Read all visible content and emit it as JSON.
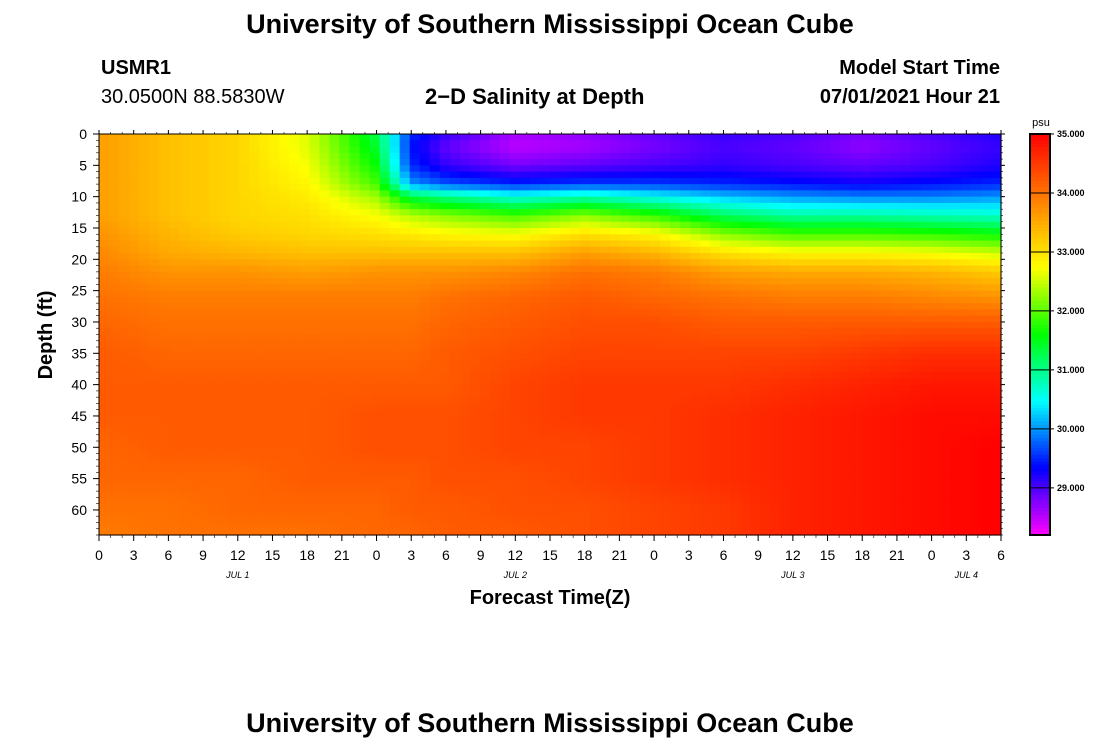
{
  "page": {
    "title_top": "University of Southern Mississippi Ocean Cube",
    "title_bottom": "University of Southern Mississippi Ocean Cube",
    "station_id": "USMR1",
    "station_coords": "30.0500N  88.5830W",
    "plot_title": "2−D Salinity at Depth",
    "model_start_label": "Model Start Time",
    "model_start_value": "07/01/2021 Hour 21"
  },
  "chart_data": {
    "type": "heatmap",
    "title": "2−D Salinity at Depth",
    "xlabel": "Forecast Time(Z)",
    "ylabel": "Depth (ft)",
    "colorbar_unit": "psu",
    "x_tick_labels": [
      "0",
      "3",
      "6",
      "9",
      "12",
      "15",
      "18",
      "21",
      "0",
      "3",
      "6",
      "9",
      "12",
      "15",
      "18",
      "21",
      "0",
      "3",
      "6",
      "9",
      "12",
      "15",
      "18",
      "21",
      "0",
      "3",
      "6"
    ],
    "x_range_hours": [
      0,
      78
    ],
    "date_labels": [
      {
        "label": "JUL 1",
        "hour": 12
      },
      {
        "label": "JUL 2",
        "hour": 36
      },
      {
        "label": "JUL 3",
        "hour": 60
      },
      {
        "label": "JUL 4",
        "hour": 75
      }
    ],
    "y_ticks": [
      0,
      5,
      10,
      15,
      20,
      25,
      30,
      35,
      40,
      45,
      50,
      55,
      60
    ],
    "y_range_ft": [
      0,
      64
    ],
    "y_reversed": true,
    "colorbar_ticks": [
      "35.000",
      "34.000",
      "33.000",
      "32.000",
      "31.000",
      "30.000",
      "29.000"
    ],
    "colorbar_range": [
      28.2,
      35.0
    ],
    "colorbar_colors": [
      "#ff00ff",
      "#8000ff",
      "#0000ff",
      "#0080ff",
      "#00ffff",
      "#00ff80",
      "#00ff00",
      "#80ff00",
      "#ffff00",
      "#ffc000",
      "#ff8000",
      "#ff4000",
      "#ff0000"
    ],
    "time_hours": [
      0,
      6,
      12,
      18,
      24,
      27,
      30,
      36,
      42,
      48,
      54,
      60,
      66,
      72,
      78
    ],
    "depths_ft": [
      0,
      2,
      5,
      8,
      10,
      13,
      16,
      19,
      22,
      26,
      30,
      35,
      40,
      45,
      50,
      55,
      60,
      64
    ],
    "salinity_psu": [
      [
        33.6,
        33.6,
        33.6,
        33.6,
        33.6,
        33.6,
        33.7,
        33.8,
        33.9,
        34.0,
        34.1,
        34.2,
        34.2,
        34.2,
        34.1,
        34.1,
        34.0,
        33.9
      ],
      [
        33.3,
        33.3,
        33.3,
        33.3,
        33.3,
        33.3,
        33.4,
        33.5,
        33.7,
        33.9,
        34.0,
        34.1,
        34.2,
        34.2,
        34.2,
        34.1,
        34.0,
        34.0
      ],
      [
        33.1,
        33.1,
        33.1,
        33.1,
        33.1,
        33.1,
        33.2,
        33.4,
        33.7,
        33.9,
        34.0,
        34.1,
        34.2,
        34.2,
        34.2,
        34.1,
        34.1,
        34.0
      ],
      [
        32.6,
        32.6,
        32.7,
        32.8,
        32.9,
        33.0,
        33.1,
        33.3,
        33.6,
        33.9,
        34.0,
        34.1,
        34.2,
        34.2,
        34.2,
        34.2,
        34.1,
        34.0
      ],
      [
        31.3,
        31.4,
        31.6,
        31.9,
        32.3,
        32.7,
        33.0,
        33.3,
        33.7,
        33.9,
        34.0,
        34.1,
        34.2,
        34.3,
        34.3,
        34.2,
        34.1,
        34.1
      ],
      [
        29.5,
        29.4,
        29.5,
        30.0,
        31.3,
        32.4,
        32.9,
        33.3,
        33.7,
        33.9,
        34.0,
        34.1,
        34.2,
        34.3,
        34.3,
        34.2,
        34.2,
        34.1
      ],
      [
        29.1,
        28.9,
        29.1,
        29.7,
        31.0,
        32.2,
        32.8,
        33.3,
        33.7,
        34.0,
        34.1,
        34.2,
        34.2,
        34.3,
        34.3,
        34.3,
        34.2,
        34.2
      ],
      [
        28.6,
        28.5,
        28.8,
        29.5,
        30.6,
        31.9,
        32.7,
        33.3,
        33.8,
        34.1,
        34.2,
        34.3,
        34.4,
        34.4,
        34.4,
        34.3,
        34.3,
        34.2
      ],
      [
        28.7,
        28.6,
        28.9,
        29.6,
        30.8,
        32.2,
        33.0,
        33.6,
        34.0,
        34.2,
        34.3,
        34.4,
        34.5,
        34.5,
        34.4,
        34.4,
        34.3,
        34.3
      ],
      [
        28.9,
        28.8,
        29.0,
        29.6,
        30.5,
        31.8,
        32.8,
        33.4,
        33.9,
        34.1,
        34.3,
        34.4,
        34.5,
        34.5,
        34.5,
        34.5,
        34.4,
        34.4
      ],
      [
        29.1,
        29.0,
        29.1,
        29.5,
        30.2,
        31.2,
        32.2,
        33.0,
        33.6,
        34.0,
        34.2,
        34.4,
        34.5,
        34.6,
        34.6,
        34.6,
        34.5,
        34.5
      ],
      [
        29.0,
        28.9,
        29.0,
        29.4,
        30.0,
        30.9,
        31.9,
        32.8,
        33.5,
        33.9,
        34.2,
        34.4,
        34.6,
        34.7,
        34.7,
        34.7,
        34.7,
        34.7
      ],
      [
        28.8,
        28.7,
        28.9,
        29.3,
        29.9,
        30.9,
        31.9,
        32.8,
        33.5,
        33.9,
        34.2,
        34.5,
        34.7,
        34.8,
        34.8,
        34.8,
        34.8,
        34.8
      ],
      [
        29.0,
        28.9,
        29.0,
        29.4,
        29.9,
        30.8,
        31.8,
        32.7,
        33.4,
        33.8,
        34.2,
        34.6,
        34.8,
        34.9,
        34.9,
        34.9,
        34.9,
        34.9
      ],
      [
        29.2,
        29.1,
        29.2,
        29.5,
        30.0,
        30.7,
        31.6,
        32.5,
        33.2,
        33.7,
        34.2,
        34.6,
        34.8,
        34.9,
        35.0,
        35.0,
        35.0,
        35.0
      ]
    ]
  }
}
